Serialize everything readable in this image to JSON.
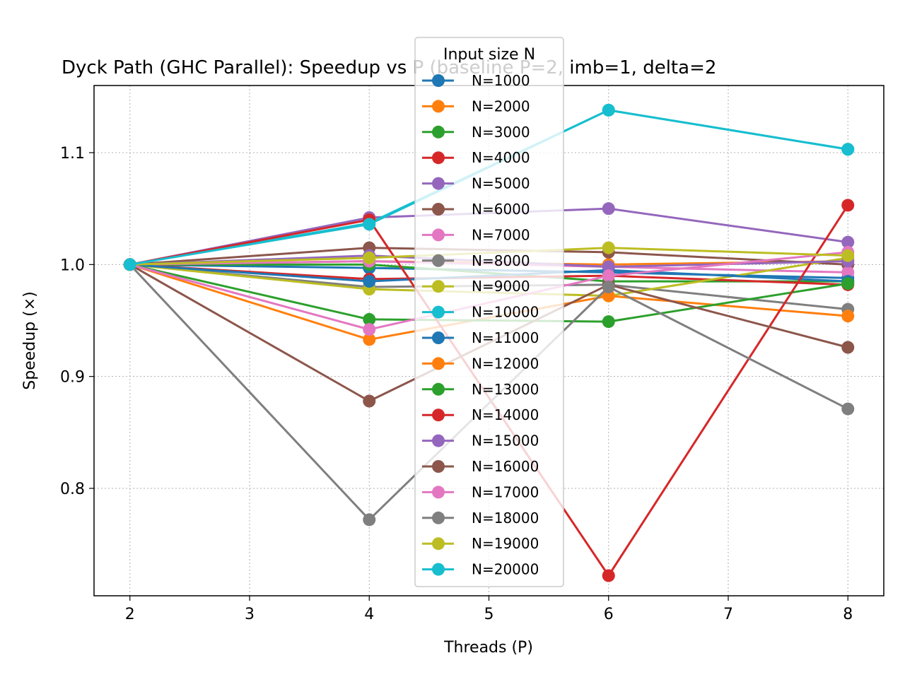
{
  "chart_data": {
    "type": "line",
    "title": "Dyck Path (GHC Parallel): Speedup vs P  (baseline P=2, imb=1, delta=2",
    "xlabel": "Threads (P)",
    "ylabel": "Speedup (×)",
    "x": [
      2,
      4,
      6,
      8
    ],
    "xlim": [
      1.7,
      8.3
    ],
    "ylim": [
      0.704,
      1.16
    ],
    "xticks": [
      "2",
      "3",
      "4",
      "5",
      "6",
      "7",
      "8"
    ],
    "yticks": [
      "0.8",
      "0.9",
      "1.0",
      "1.1"
    ],
    "grid": true,
    "legend": {
      "title": "Input size N",
      "placement": "upper center"
    },
    "series": [
      {
        "name": "N=1000",
        "color": "#1f77b4",
        "values": [
          1.0,
          0.997,
          0.993,
          0.988
        ]
      },
      {
        "name": "N=2000",
        "color": "#ff7f0e",
        "values": [
          1.0,
          1.003,
          1.0,
          1.003
        ]
      },
      {
        "name": "N=3000",
        "color": "#2ca02c",
        "values": [
          1.0,
          1.0,
          0.985,
          0.985
        ]
      },
      {
        "name": "N=4000",
        "color": "#d62728",
        "values": [
          1.0,
          0.987,
          0.99,
          0.982
        ]
      },
      {
        "name": "N=5000",
        "color": "#9467bd",
        "values": [
          1.0,
          1.042,
          1.05,
          1.02
        ]
      },
      {
        "name": "N=6000",
        "color": "#8c564b",
        "values": [
          1.0,
          1.015,
          1.011,
          1.0
        ]
      },
      {
        "name": "N=7000",
        "color": "#e377c2",
        "values": [
          1.0,
          1.003,
          0.998,
          0.993
        ]
      },
      {
        "name": "N=8000",
        "color": "#7f7f7f",
        "values": [
          1.0,
          0.98,
          0.982,
          0.96
        ]
      },
      {
        "name": "N=9000",
        "color": "#bcbd22",
        "values": [
          1.0,
          0.978,
          0.972,
          1.006
        ]
      },
      {
        "name": "N=10000",
        "color": "#17becf",
        "values": [
          1.0,
          1.037,
          1.138,
          1.103
        ]
      },
      {
        "name": "N=11000",
        "color": "#1f77b4",
        "values": [
          1.0,
          0.985,
          0.995,
          0.985
        ]
      },
      {
        "name": "N=12000",
        "color": "#ff7f0e",
        "values": [
          1.0,
          0.933,
          0.972,
          0.954
        ]
      },
      {
        "name": "N=13000",
        "color": "#2ca02c",
        "values": [
          1.0,
          0.951,
          0.949,
          0.983
        ]
      },
      {
        "name": "N=14000",
        "color": "#d62728",
        "values": [
          1.0,
          1.04,
          0.722,
          1.053
        ]
      },
      {
        "name": "N=15000",
        "color": "#9467bd",
        "values": [
          1.0,
          1.008,
          0.998,
          1.003
        ]
      },
      {
        "name": "N=16000",
        "color": "#8c564b",
        "values": [
          1.0,
          0.878,
          0.982,
          0.926
        ]
      },
      {
        "name": "N=17000",
        "color": "#e377c2",
        "values": [
          1.0,
          0.942,
          0.99,
          1.011
        ]
      },
      {
        "name": "N=18000",
        "color": "#7f7f7f",
        "values": [
          1.0,
          0.772,
          0.98,
          0.871
        ]
      },
      {
        "name": "N=19000",
        "color": "#bcbd22",
        "values": [
          1.0,
          1.006,
          1.015,
          1.008
        ]
      },
      {
        "name": "N=20000",
        "color": "#17becf",
        "values": [
          1.0,
          1.036,
          1.138,
          1.103
        ]
      }
    ]
  }
}
